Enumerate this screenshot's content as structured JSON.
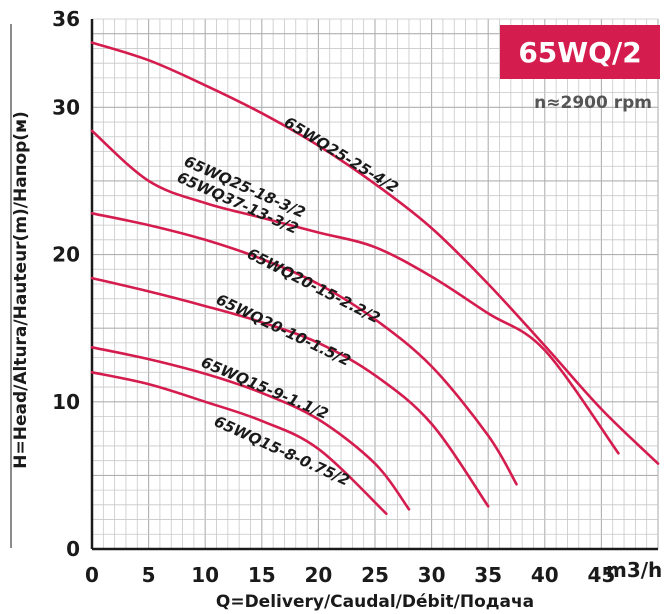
{
  "chart_data": {
    "type": "line",
    "title": "65WQ/2",
    "subtitle": "n≈2900 rpm",
    "xlabel": "Q=Delivery/Caudal/Débit/Подача",
    "xunit": "m3/h",
    "ylabel": "H=Head/Altura/Hauteur(m)/Напор(м)",
    "xlim": [
      0,
      50
    ],
    "ylim": [
      0,
      36
    ],
    "xticks": [
      0,
      5,
      10,
      15,
      20,
      25,
      30,
      35,
      40,
      45
    ],
    "yticks": [
      0,
      10,
      20,
      30,
      36
    ],
    "grid": true,
    "accent_color": "#d41d4e",
    "series": [
      {
        "name": "65WQ25-25-4/2",
        "x": [
          0,
          5,
          10,
          15,
          20,
          25,
          30,
          35,
          40,
          45,
          50
        ],
        "y": [
          34.4,
          33.2,
          31.5,
          29.6,
          27.4,
          24.8,
          21.8,
          18.0,
          13.8,
          9.5,
          5.8
        ]
      },
      {
        "name": "65WQ25-18-3/2",
        "x": [
          0,
          5,
          10,
          15,
          20,
          25,
          30,
          35,
          40,
          46.5
        ],
        "y": [
          28.4,
          25.0,
          23.5,
          22.5,
          21.5,
          20.5,
          18.5,
          16.0,
          13.5,
          6.5
        ]
      },
      {
        "name": "65WQ37-13-3/2",
        "x": [],
        "y": []
      },
      {
        "name": "65WQ20-15-2.2/2",
        "x": [
          0,
          5,
          10,
          15,
          20,
          25,
          30,
          35,
          37.5
        ],
        "y": [
          22.8,
          22.0,
          21.0,
          19.7,
          18.0,
          15.6,
          12.4,
          7.7,
          4.4
        ]
      },
      {
        "name": "65WQ20-10-1.5/2",
        "x": [
          0,
          5,
          10,
          15,
          20,
          25,
          30,
          35
        ],
        "y": [
          18.4,
          17.5,
          16.5,
          15.4,
          14.0,
          11.8,
          8.5,
          2.9
        ]
      },
      {
        "name": "65WQ15-9-1.1/2",
        "x": [
          0,
          5,
          10,
          15,
          20,
          25,
          28
        ],
        "y": [
          13.7,
          12.9,
          11.9,
          10.6,
          8.8,
          5.8,
          2.7
        ]
      },
      {
        "name": "65WQ15-8-0.75/2",
        "x": [
          0,
          5,
          10,
          15,
          20,
          26
        ],
        "y": [
          12.0,
          11.2,
          10.0,
          8.7,
          6.8,
          2.4
        ]
      }
    ],
    "labels": [
      {
        "text": "65WQ25-25-4/2"
      },
      {
        "text": "65WQ25-18-3/2"
      },
      {
        "text": "65WQ37-13-3/2"
      },
      {
        "text": "65WQ20-15-2.2/2"
      },
      {
        "text": "65WQ20-10-1.5/2"
      },
      {
        "text": "65WQ15-9-1.1/2"
      },
      {
        "text": "65WQ15-8-0.75/2"
      }
    ]
  }
}
